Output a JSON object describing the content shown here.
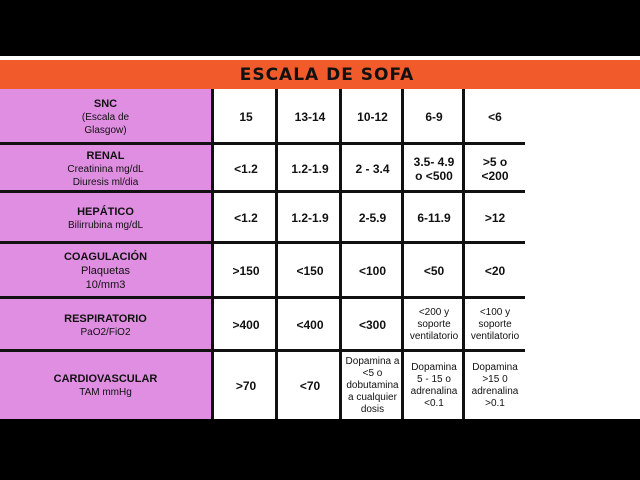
{
  "title": "ESCALA DE SOFA",
  "rows": [
    {
      "name": "SNC",
      "sub": [
        "(Escala de",
        "Glasgow)"
      ],
      "cells": [
        "15",
        "13-14",
        "10-12",
        "6-9",
        "<6"
      ]
    },
    {
      "name": "RENAL",
      "sub": [
        "Creatinina mg/dL",
        "Diuresis ml/dia"
      ],
      "cells": [
        "<1.2",
        "1.2-1.9",
        "2 - 3.4",
        "3.5- 4.9\no <500",
        ">5 o\n<200"
      ]
    },
    {
      "name": "HEPÁTICO",
      "sub": [
        "Bilirrubina mg/dL"
      ],
      "cells": [
        "<1.2",
        "1.2-1.9",
        "2-5.9",
        "6-11.9",
        ">12"
      ]
    },
    {
      "name": "COAGULACIÓN",
      "sub": [
        "Plaquetas",
        "10/mm3"
      ],
      "cells": [
        ">150",
        "<150",
        "<100",
        "<50",
        "<20"
      ]
    },
    {
      "name": "RESPIRATORIO",
      "sub": [
        "PaO2/FiO2"
      ],
      "cells": [
        ">400",
        "<400",
        "<300",
        "<200 y\nsoporte\nventilatorio",
        "<100 y\nsoporte\nventilatorio"
      ]
    },
    {
      "name": "CARDIOVASCULAR",
      "sub": [
        "TAM mmHg"
      ],
      "cells": [
        ">70",
        "<70",
        "Dopamina a\n<5 o\ndobutamina\na cualquier\ndosis",
        "Dopamina\n5 - 15 o\nadrenalina\n<0.1",
        "Dopamina\n>15 0\nadrenalina\n>0.1"
      ]
    }
  ],
  "colors": {
    "title_bar": "#f15a2b",
    "label_bg": "#e08ee2",
    "grid": "#111111",
    "background": "#000000"
  }
}
